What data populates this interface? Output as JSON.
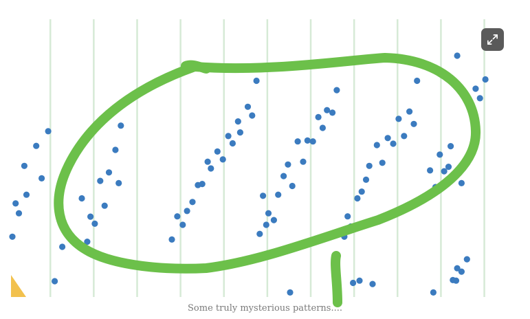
{
  "caption": "Some truly mysterious patterns....",
  "expand_button": {
    "icon": "expand-icon"
  },
  "colors": {
    "points": "#3b7bbf",
    "gridlines": "#d6ead6",
    "annotation": "#6cc04a",
    "corner_accent": "#f2c14e",
    "button_bg": "#5a5a5a"
  },
  "annotation": {
    "type": "hand-drawn-circle",
    "icon": "hand-drawn-loop"
  },
  "chart_data": {
    "type": "scatter",
    "title": "",
    "xlabel": "",
    "ylabel": "",
    "grid": "vertical lines only",
    "legend": "none",
    "xlim": [
      0,
      46
    ],
    "ylim": [
      0,
      100
    ],
    "vertical_gridlines_x": [
      3.5,
      7.5,
      11.5,
      15.5,
      19.5,
      23.5,
      27.5,
      31.5,
      35.5,
      39.5,
      43.5
    ],
    "series": [
      {
        "values": [
          {
            "x": 0.0,
            "y": 21.4
          },
          {
            "x": 0.3,
            "y": 33.2
          },
          {
            "x": 0.6,
            "y": 29.7
          },
          {
            "x": 1.1,
            "y": 46.5
          },
          {
            "x": 1.3,
            "y": 36.3
          },
          {
            "x": 2.2,
            "y": 53.6
          },
          {
            "x": 2.7,
            "y": 42.1
          },
          {
            "x": 3.3,
            "y": 58.8
          },
          {
            "x": 3.9,
            "y": 5.6
          },
          {
            "x": 4.6,
            "y": 17.8
          },
          {
            "x": 6.4,
            "y": 35.0
          },
          {
            "x": 6.9,
            "y": 19.6
          },
          {
            "x": 7.2,
            "y": 28.5
          },
          {
            "x": 7.6,
            "y": 26.0
          },
          {
            "x": 8.1,
            "y": 41.2
          },
          {
            "x": 8.5,
            "y": 32.4
          },
          {
            "x": 8.9,
            "y": 44.2
          },
          {
            "x": 9.5,
            "y": 52.2
          },
          {
            "x": 9.8,
            "y": 40.4
          },
          {
            "x": 10.0,
            "y": 60.8
          },
          {
            "x": 14.7,
            "y": 20.4
          },
          {
            "x": 15.2,
            "y": 28.6
          },
          {
            "x": 15.7,
            "y": 25.6
          },
          {
            "x": 16.1,
            "y": 30.5
          },
          {
            "x": 16.6,
            "y": 33.7
          },
          {
            "x": 17.1,
            "y": 39.7
          },
          {
            "x": 17.5,
            "y": 40.1
          },
          {
            "x": 18.0,
            "y": 48.0
          },
          {
            "x": 18.3,
            "y": 45.6
          },
          {
            "x": 18.9,
            "y": 51.6
          },
          {
            "x": 19.4,
            "y": 48.8
          },
          {
            "x": 19.9,
            "y": 57.1
          },
          {
            "x": 20.3,
            "y": 54.5
          },
          {
            "x": 20.8,
            "y": 62.3
          },
          {
            "x": 21.0,
            "y": 58.4
          },
          {
            "x": 21.7,
            "y": 67.5
          },
          {
            "x": 22.1,
            "y": 64.4
          },
          {
            "x": 22.5,
            "y": 76.7
          },
          {
            "x": 22.8,
            "y": 22.4
          },
          {
            "x": 23.1,
            "y": 35.9
          },
          {
            "x": 23.4,
            "y": 25.6
          },
          {
            "x": 23.6,
            "y": 29.7
          },
          {
            "x": 24.1,
            "y": 27.3
          },
          {
            "x": 24.5,
            "y": 36.3
          },
          {
            "x": 25.0,
            "y": 42.9
          },
          {
            "x": 25.4,
            "y": 47.0
          },
          {
            "x": 25.8,
            "y": 39.4
          },
          {
            "x": 25.6,
            "y": 1.6
          },
          {
            "x": 26.3,
            "y": 55.2
          },
          {
            "x": 26.8,
            "y": 48.0
          },
          {
            "x": 27.2,
            "y": 55.5
          },
          {
            "x": 27.7,
            "y": 55.2
          },
          {
            "x": 28.2,
            "y": 63.8
          },
          {
            "x": 28.6,
            "y": 60.0
          },
          {
            "x": 29.0,
            "y": 66.3
          },
          {
            "x": 29.5,
            "y": 65.4
          },
          {
            "x": 29.9,
            "y": 73.4
          },
          {
            "x": 30.6,
            "y": 21.4
          },
          {
            "x": 30.9,
            "y": 28.6
          },
          {
            "x": 31.2,
            "y": 25.0
          },
          {
            "x": 31.4,
            "y": 5.0
          },
          {
            "x": 31.8,
            "y": 35.0
          },
          {
            "x": 32.2,
            "y": 37.4
          },
          {
            "x": 32.0,
            "y": 5.8
          },
          {
            "x": 32.6,
            "y": 41.6
          },
          {
            "x": 32.9,
            "y": 46.5
          },
          {
            "x": 33.2,
            "y": 4.6
          },
          {
            "x": 33.6,
            "y": 53.9
          },
          {
            "x": 34.1,
            "y": 47.6
          },
          {
            "x": 34.6,
            "y": 56.4
          },
          {
            "x": 35.1,
            "y": 54.4
          },
          {
            "x": 35.6,
            "y": 63.2
          },
          {
            "x": 36.1,
            "y": 57.1
          },
          {
            "x": 36.6,
            "y": 65.8
          },
          {
            "x": 37.0,
            "y": 61.4
          },
          {
            "x": 37.3,
            "y": 76.7
          },
          {
            "x": 38.1,
            "y": 35.0
          },
          {
            "x": 38.5,
            "y": 44.9
          },
          {
            "x": 38.8,
            "y": 1.6
          },
          {
            "x": 39.0,
            "y": 39.0
          },
          {
            "x": 39.4,
            "y": 50.5
          },
          {
            "x": 39.8,
            "y": 44.6
          },
          {
            "x": 40.2,
            "y": 46.2
          },
          {
            "x": 40.4,
            "y": 53.5
          },
          {
            "x": 40.6,
            "y": 6.0
          },
          {
            "x": 41.0,
            "y": 85.6
          },
          {
            "x": 40.9,
            "y": 5.8
          },
          {
            "x": 41.0,
            "y": 10.2
          },
          {
            "x": 41.4,
            "y": 40.4
          },
          {
            "x": 41.4,
            "y": 9.0
          },
          {
            "x": 41.7,
            "y": 47.0
          },
          {
            "x": 41.9,
            "y": 13.4
          },
          {
            "x": 42.3,
            "y": 65.9
          },
          {
            "x": 42.7,
            "y": 73.9
          },
          {
            "x": 43.1,
            "y": 70.5
          },
          {
            "x": 43.6,
            "y": 77.2
          }
        ]
      }
    ]
  }
}
